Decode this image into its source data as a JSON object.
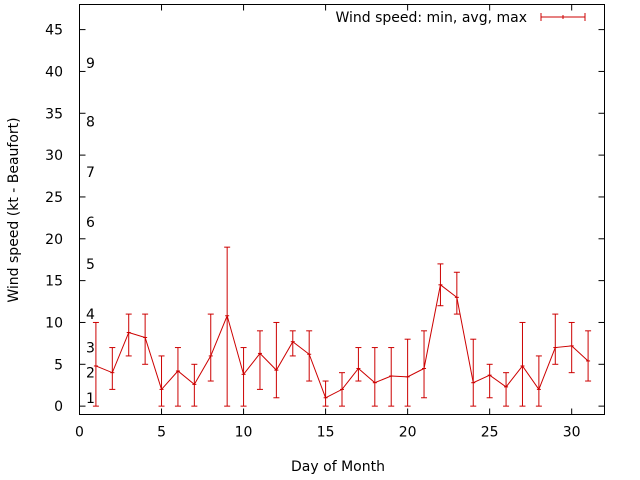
{
  "chart_data": {
    "type": "line",
    "title": "",
    "xlabel": "Day of Month",
    "ylabel": "Wind speed (kt - Beaufort)",
    "xlim": [
      0,
      32
    ],
    "ylim": [
      -1,
      48
    ],
    "x_ticks": [
      0,
      5,
      10,
      15,
      20,
      25,
      30
    ],
    "y_ticks": [
      0,
      5,
      10,
      15,
      20,
      25,
      30,
      35,
      40,
      45
    ],
    "grid": false,
    "legend_position": "top-right",
    "error_bars": true,
    "series": [
      {
        "name": "Wind speed: min, avg, max",
        "color": "#cc0000",
        "x": [
          1,
          2,
          3,
          4,
          5,
          6,
          7,
          8,
          9,
          10,
          11,
          12,
          13,
          14,
          15,
          16,
          17,
          18,
          19,
          20,
          21,
          22,
          23,
          24,
          25,
          26,
          27,
          28,
          29,
          30,
          31
        ],
        "avg": [
          4.8,
          4.0,
          8.8,
          8.2,
          2.0,
          4.2,
          2.6,
          6.0,
          10.8,
          3.8,
          6.3,
          4.3,
          7.7,
          6.2,
          1.0,
          2.0,
          4.5,
          2.8,
          3.6,
          3.5,
          4.5,
          14.5,
          13.0,
          2.8,
          3.7,
          2.3,
          4.8,
          2.0,
          7.0,
          7.2,
          5.4
        ],
        "min": [
          0,
          2,
          6,
          5,
          0,
          0,
          0,
          3,
          0,
          0,
          2,
          1,
          6,
          3,
          0,
          0,
          3,
          0,
          0,
          0,
          1,
          12,
          11,
          0,
          1,
          0,
          0,
          0,
          5,
          4,
          3
        ],
        "max": [
          10,
          7,
          11,
          11,
          6,
          7,
          5,
          11,
          19,
          7,
          9,
          10,
          9,
          9,
          3,
          4,
          7,
          7,
          7,
          8,
          9,
          17,
          16,
          8,
          5,
          4,
          10,
          6,
          11,
          10,
          9
        ]
      }
    ],
    "annotations": [
      {
        "text": "1",
        "y": 1
      },
      {
        "text": "2",
        "y": 4
      },
      {
        "text": "3",
        "y": 7
      },
      {
        "text": "4",
        "y": 11
      },
      {
        "text": "5",
        "y": 17
      },
      {
        "text": "6",
        "y": 22
      },
      {
        "text": "7",
        "y": 28
      },
      {
        "text": "8",
        "y": 34
      },
      {
        "text": "9",
        "y": 41
      }
    ]
  }
}
